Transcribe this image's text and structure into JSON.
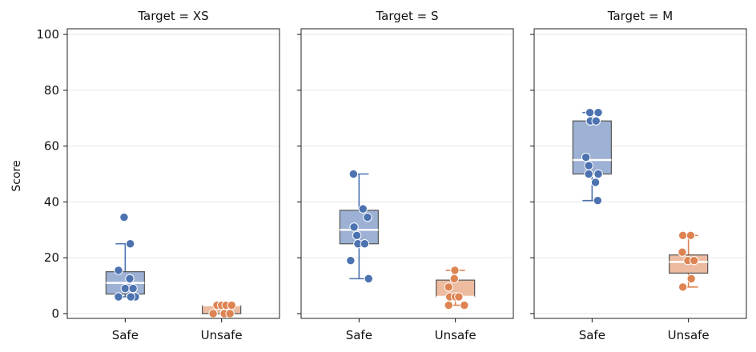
{
  "chart_data": {
    "type": "box",
    "ylabel": "Score",
    "ylim": [
      -2,
      102
    ],
    "yticks": [
      0,
      20,
      40,
      60,
      80,
      100
    ],
    "grid": true,
    "categories": [
      "Safe",
      "Unsafe"
    ],
    "colors": {
      "Safe": "#4c72b0",
      "Unsafe": "#dd8452"
    },
    "panels": [
      {
        "title": "Target = XS",
        "groups": [
          {
            "category": "Safe",
            "q1": 7,
            "median": 11,
            "q3": 15,
            "whisker_low": 6,
            "whisker_high": 25,
            "points": [
              {
                "x": -0.12,
                "y": 6
              },
              {
                "x": 0.18,
                "y": 6
              },
              {
                "x": 0.1,
                "y": 6
              },
              {
                "x": 0.0,
                "y": 9
              },
              {
                "x": 0.14,
                "y": 9
              },
              {
                "x": 0.08,
                "y": 12.5
              },
              {
                "x": -0.12,
                "y": 15.5
              },
              {
                "x": 0.09,
                "y": 25
              },
              {
                "x": -0.02,
                "y": 34.5
              }
            ]
          },
          {
            "category": "Unsafe",
            "q1": 0,
            "median": 3,
            "q3": 3,
            "whisker_low": 0,
            "whisker_high": 3,
            "points": [
              {
                "x": -0.15,
                "y": 0
              },
              {
                "x": 0.05,
                "y": 0
              },
              {
                "x": 0.15,
                "y": 0
              },
              {
                "x": -0.08,
                "y": 3
              },
              {
                "x": 0.0,
                "y": 3
              },
              {
                "x": 0.08,
                "y": 3
              },
              {
                "x": 0.18,
                "y": 3
              }
            ]
          }
        ]
      },
      {
        "title": "Target = S",
        "groups": [
          {
            "category": "Safe",
            "q1": 25,
            "median": 30,
            "q3": 37,
            "whisker_low": 12.5,
            "whisker_high": 50,
            "points": [
              {
                "x": -0.15,
                "y": 19
              },
              {
                "x": -0.02,
                "y": 25
              },
              {
                "x": 0.1,
                "y": 25
              },
              {
                "x": -0.04,
                "y": 28
              },
              {
                "x": -0.09,
                "y": 31
              },
              {
                "x": 0.15,
                "y": 34.5
              },
              {
                "x": 0.07,
                "y": 37.5
              },
              {
                "x": -0.1,
                "y": 50
              },
              {
                "x": 0.17,
                "y": 12.5
              }
            ]
          },
          {
            "category": "Unsafe",
            "q1": 6,
            "median": 6,
            "q3": 12,
            "whisker_low": 3,
            "whisker_high": 15.5,
            "points": [
              {
                "x": -0.12,
                "y": 3
              },
              {
                "x": 0.16,
                "y": 3
              },
              {
                "x": -0.1,
                "y": 6
              },
              {
                "x": 0.0,
                "y": 6
              },
              {
                "x": 0.06,
                "y": 6
              },
              {
                "x": -0.12,
                "y": 9.5
              },
              {
                "x": -0.02,
                "y": 12.5
              },
              {
                "x": -0.01,
                "y": 15.5
              }
            ]
          }
        ]
      },
      {
        "title": "Target = M",
        "groups": [
          {
            "category": "Safe",
            "q1": 50,
            "median": 55,
            "q3": 69,
            "whisker_low": 40.5,
            "whisker_high": 72,
            "points": [
              {
                "x": 0.1,
                "y": 40.5
              },
              {
                "x": 0.06,
                "y": 47
              },
              {
                "x": -0.06,
                "y": 50
              },
              {
                "x": 0.11,
                "y": 50
              },
              {
                "x": -0.06,
                "y": 53
              },
              {
                "x": -0.11,
                "y": 56
              },
              {
                "x": -0.03,
                "y": 69
              },
              {
                "x": 0.07,
                "y": 69
              },
              {
                "x": -0.04,
                "y": 72
              },
              {
                "x": 0.11,
                "y": 72
              }
            ]
          },
          {
            "category": "Unsafe",
            "q1": 14.5,
            "median": 18.5,
            "q3": 21,
            "whisker_low": 9.5,
            "whisker_high": 28,
            "points": [
              {
                "x": -0.11,
                "y": 9.5
              },
              {
                "x": -0.1,
                "y": 9.5
              },
              {
                "x": 0.05,
                "y": 12.5
              },
              {
                "x": -0.11,
                "y": 22
              },
              {
                "x": -0.01,
                "y": 19
              },
              {
                "x": 0.1,
                "y": 19
              },
              {
                "x": -0.1,
                "y": 28
              },
              {
                "x": 0.04,
                "y": 28
              }
            ]
          }
        ]
      }
    ]
  }
}
